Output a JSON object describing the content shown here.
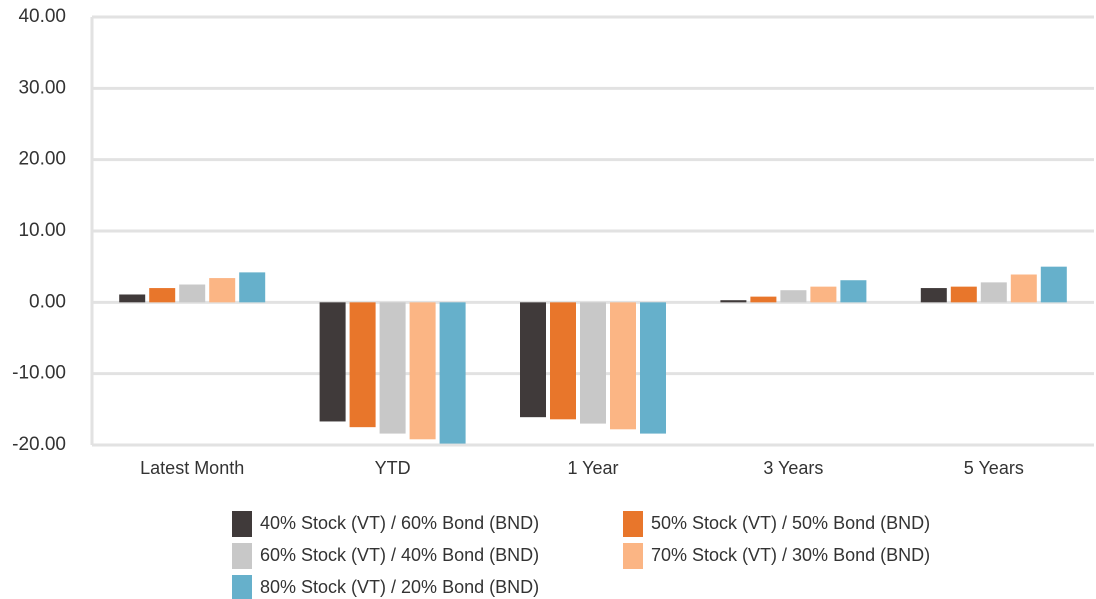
{
  "chart_data": {
    "type": "bar",
    "categories": [
      "Latest Month",
      "YTD",
      "1 Year",
      "3 Years",
      "5 Years"
    ],
    "series": [
      {
        "name": "40% Stock (VT) / 60% Bond (BND)",
        "color": "#403a3a",
        "values": [
          1.1,
          -16.7,
          -16.1,
          0.3,
          2.0
        ]
      },
      {
        "name": "50% Stock (VT) / 50% Bond (BND)",
        "color": "#e8762b",
        "values": [
          2.0,
          -17.5,
          -16.4,
          0.8,
          2.2
        ]
      },
      {
        "name": "60% Stock (VT) / 40% Bond (BND)",
        "color": "#c8c8c8",
        "values": [
          2.5,
          -18.4,
          -17.0,
          1.7,
          2.8
        ]
      },
      {
        "name": "70% Stock (VT) / 30% Bond (BND)",
        "color": "#fbb584",
        "values": [
          3.4,
          -19.2,
          -17.8,
          2.2,
          3.9
        ]
      },
      {
        "name": "80% Stock (VT) / 20% Bond (BND)",
        "color": "#66b0cb",
        "values": [
          4.2,
          -19.8,
          -18.4,
          3.1,
          5.0
        ]
      }
    ],
    "ylim": [
      -20,
      40
    ],
    "yticks": [
      {
        "value": -20,
        "label": "-20.00"
      },
      {
        "value": -10,
        "label": "-10.00"
      },
      {
        "value": 0,
        "label": "0.00"
      },
      {
        "value": 10,
        "label": "10.00"
      },
      {
        "value": 20,
        "label": "20.00"
      },
      {
        "value": 30,
        "label": "30.00"
      },
      {
        "value": 40,
        "label": "40.00"
      }
    ],
    "grid": true
  }
}
